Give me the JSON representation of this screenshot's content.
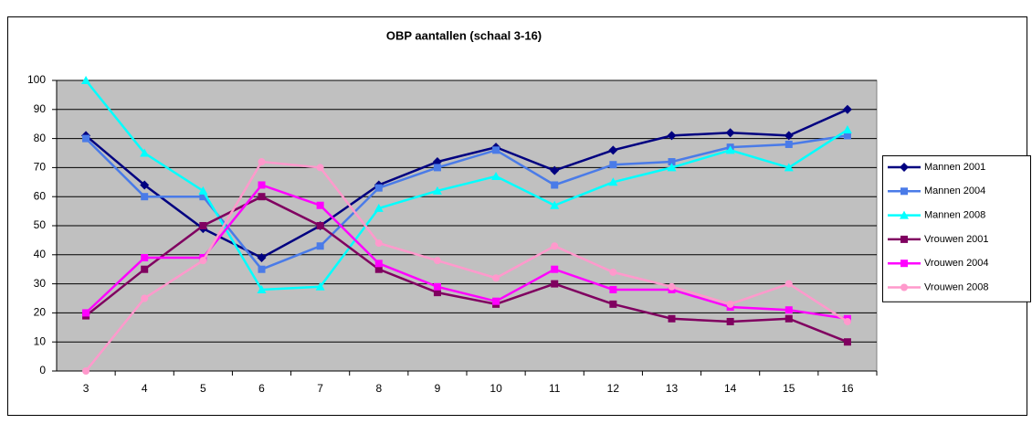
{
  "chart_data": {
    "type": "line",
    "title": "OBP aantallen (schaal 3-16)",
    "categories": [
      "3",
      "4",
      "5",
      "6",
      "7",
      "8",
      "9",
      "10",
      "11",
      "12",
      "13",
      "14",
      "15",
      "16"
    ],
    "ylim": [
      0,
      100
    ],
    "yticks": [
      0,
      10,
      20,
      30,
      40,
      50,
      60,
      70,
      80,
      90,
      100
    ],
    "grid": true,
    "plot_background": "#c0c0c0",
    "legend": "right",
    "series": [
      {
        "name": "Mannen 2001",
        "color": "#000080",
        "marker": "diamond",
        "values": [
          81,
          64,
          49,
          39,
          50,
          64,
          72,
          77,
          69,
          76,
          81,
          82,
          81,
          90
        ]
      },
      {
        "name": "Mannen 2004",
        "color": "#4a7be8",
        "marker": "square",
        "values": [
          80,
          60,
          60,
          35,
          43,
          63,
          70,
          76,
          64,
          71,
          72,
          77,
          78,
          81
        ]
      },
      {
        "name": "Mannen 2008",
        "color": "#00ffff",
        "marker": "triangle",
        "values": [
          100,
          75,
          62,
          28,
          29,
          56,
          62,
          67,
          57,
          65,
          70,
          76,
          70,
          83
        ]
      },
      {
        "name": "Vrouwen 2001",
        "color": "#800060",
        "marker": "square",
        "values": [
          19,
          35,
          50,
          60,
          50,
          35,
          27,
          23,
          30,
          23,
          18,
          17,
          18,
          10
        ]
      },
      {
        "name": "Vrouwen 2004",
        "color": "#ff00ff",
        "marker": "square",
        "values": [
          20,
          39,
          39,
          64,
          57,
          37,
          29,
          24,
          35,
          28,
          28,
          22,
          21,
          18
        ]
      },
      {
        "name": "Vrouwen 2008",
        "color": "#ff99cc",
        "marker": "circle",
        "values": [
          0,
          25,
          38,
          72,
          70,
          44,
          38,
          32,
          43,
          34,
          29,
          23,
          30,
          17
        ]
      }
    ]
  }
}
